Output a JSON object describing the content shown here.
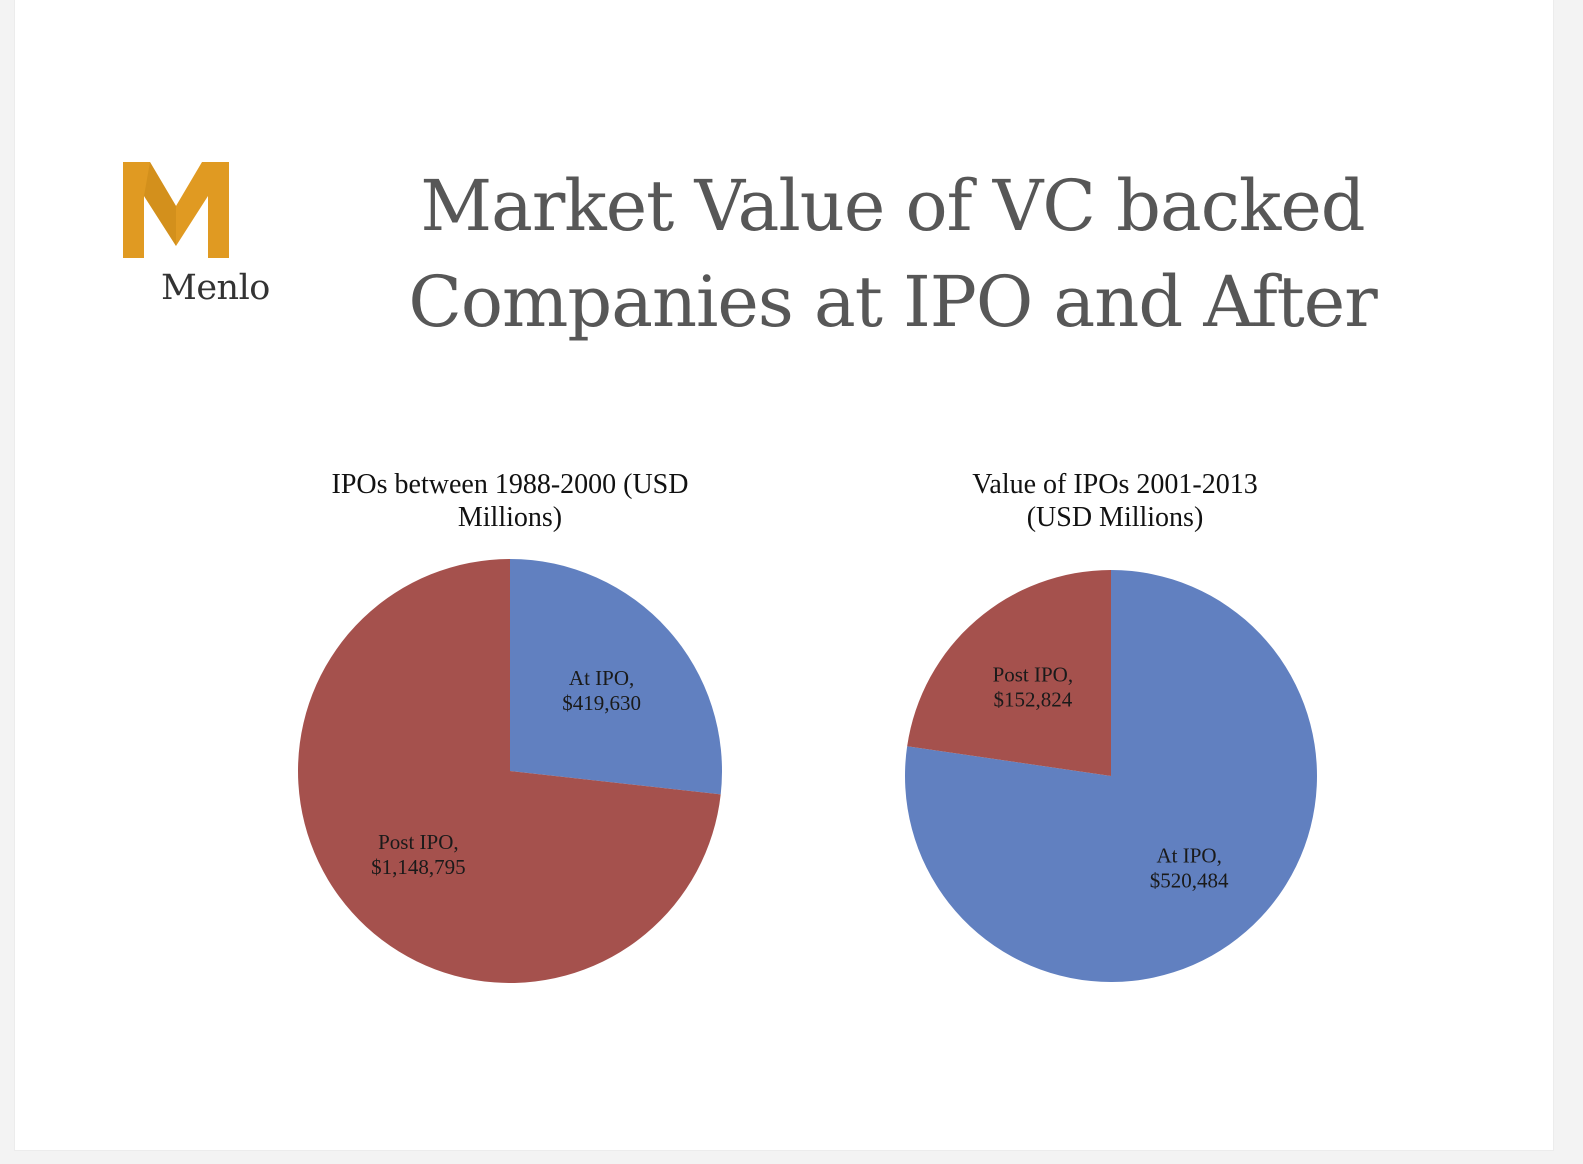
{
  "logo": {
    "mark_letter": "M",
    "word": "Menlo",
    "color": "#e09a22"
  },
  "title_lines": [
    "Market Value of VC backed",
    "Companies at IPO and After"
  ],
  "chart_data": [
    {
      "type": "pie",
      "title": "IPOs between 1988-2000 (USD\nMillions)",
      "slices": [
        {
          "name": "At IPO",
          "value": 419630,
          "label": "At IPO,\n$419,630",
          "color": "#6180c0"
        },
        {
          "name": "Post IPO",
          "value": 1148795,
          "label": "Post IPO,\n$1,148,795",
          "color": "#a5514d"
        }
      ],
      "start_angle_deg": 0,
      "direction": "clockwise",
      "legend": "none",
      "data_labels": "inside"
    },
    {
      "type": "pie",
      "title": "Value of IPOs 2001-2013\n(USD Millions)",
      "slices": [
        {
          "name": "At IPO",
          "value": 520484,
          "label": "At IPO,\n$520,484",
          "color": "#6180c0"
        },
        {
          "name": "Post IPO",
          "value": 152824,
          "label": "Post IPO,\n$152,824",
          "color": "#a5514d"
        }
      ],
      "start_angle_deg": 0,
      "direction": "clockwise",
      "legend": "none",
      "data_labels": "inside"
    }
  ]
}
